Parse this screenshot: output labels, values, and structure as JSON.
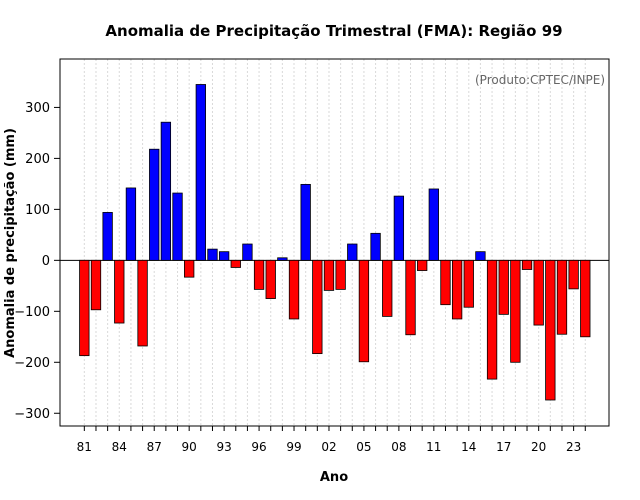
{
  "chart_data": {
    "type": "bar",
    "title": "Anomalia de Precipitação Trimestral (FMA): Região 99",
    "xlabel": "Ano",
    "ylabel": "Anomalia de precipitação (mm)",
    "credit": "(Produto:CPTEC/INPE)",
    "ylim": [
      -325,
      395
    ],
    "yticks": [
      -300,
      -200,
      -100,
      0,
      100,
      200,
      300
    ],
    "ytick_labels": [
      "−300",
      "−200",
      "−100",
      "0",
      "100",
      "200",
      "300"
    ],
    "xtick_labels": [
      "81",
      "84",
      "87",
      "90",
      "93",
      "96",
      "99",
      "02",
      "05",
      "08",
      "11",
      "14",
      "17",
      "20",
      "23"
    ],
    "xtick_every": 3,
    "positive_color": "#0000ff",
    "negative_color": "#ff0000",
    "categories": [
      "1981",
      "1982",
      "1983",
      "1984",
      "1985",
      "1986",
      "1987",
      "1988",
      "1989",
      "1990",
      "1991",
      "1992",
      "1993",
      "1994",
      "1995",
      "1996",
      "1997",
      "1998",
      "1999",
      "2000",
      "2001",
      "2002",
      "2003",
      "2004",
      "2005",
      "2006",
      "2007",
      "2008",
      "2009",
      "2010",
      "2011",
      "2012",
      "2013",
      "2014",
      "2015",
      "2016",
      "2017",
      "2018",
      "2019",
      "2020",
      "2021",
      "2022",
      "2023",
      "2024"
    ],
    "values": [
      -187,
      -97,
      94,
      -123,
      142,
      -168,
      218,
      271,
      132,
      -33,
      345,
      22,
      17,
      -14,
      32,
      -57,
      -75,
      5,
      -115,
      149,
      -183,
      -59,
      -57,
      32,
      -199,
      53,
      -110,
      126,
      -146,
      -20,
      140,
      -87,
      -115,
      -92,
      17,
      -233,
      -106,
      -200,
      -18,
      -127,
      -274,
      -145,
      -56,
      -150
    ]
  }
}
